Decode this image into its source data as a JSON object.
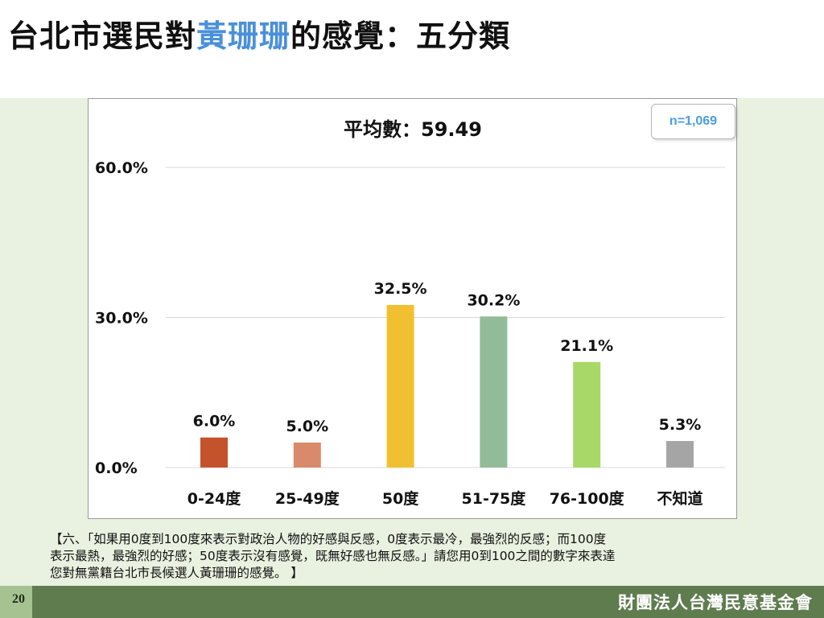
{
  "header": {
    "title_pre": "台北市選民對",
    "title_highlight": "黃珊珊",
    "title_post": "的感覺：五分類"
  },
  "accent_color": "#4a90d9",
  "sample_size": "n=1,069",
  "chart_data": {
    "type": "bar",
    "title": "平均數：59.49",
    "categories": [
      "0-24度",
      "25-49度",
      "50度",
      "51-75度",
      "76-100度",
      "不知道"
    ],
    "values": [
      6.0,
      5.0,
      32.5,
      30.2,
      21.1,
      5.3
    ],
    "value_labels": [
      "6.0%",
      "5.0%",
      "32.5%",
      "30.2%",
      "21.1%",
      "5.3%"
    ],
    "colors": [
      "#c4522a",
      "#d98a6a",
      "#f0c030",
      "#92bc97",
      "#a8d868",
      "#a5a5a5"
    ],
    "y_ticks": [
      0,
      30,
      60
    ],
    "y_tick_labels": [
      "0.0%",
      "30.0%",
      "60.0%"
    ],
    "ylim": [
      0,
      60
    ],
    "xlabel": "",
    "ylabel": "",
    "grid": true,
    "legend": "none"
  },
  "note": {
    "line1": "【六、「如果用0度到100度來表示對政治人物的好感與反感，0度表示最冷，最強烈的反感；而100度",
    "line2": "表示最熱，最強烈的好感；50度表示沒有感覺，既無好感也無反感。」請您用0到100之間的數字來表達",
    "line3": "您對無黨籍台北市長候選人黃珊珊的感覺。 】"
  },
  "footer": {
    "page_number": "20",
    "organization": "財團法人台灣民意基金會"
  }
}
